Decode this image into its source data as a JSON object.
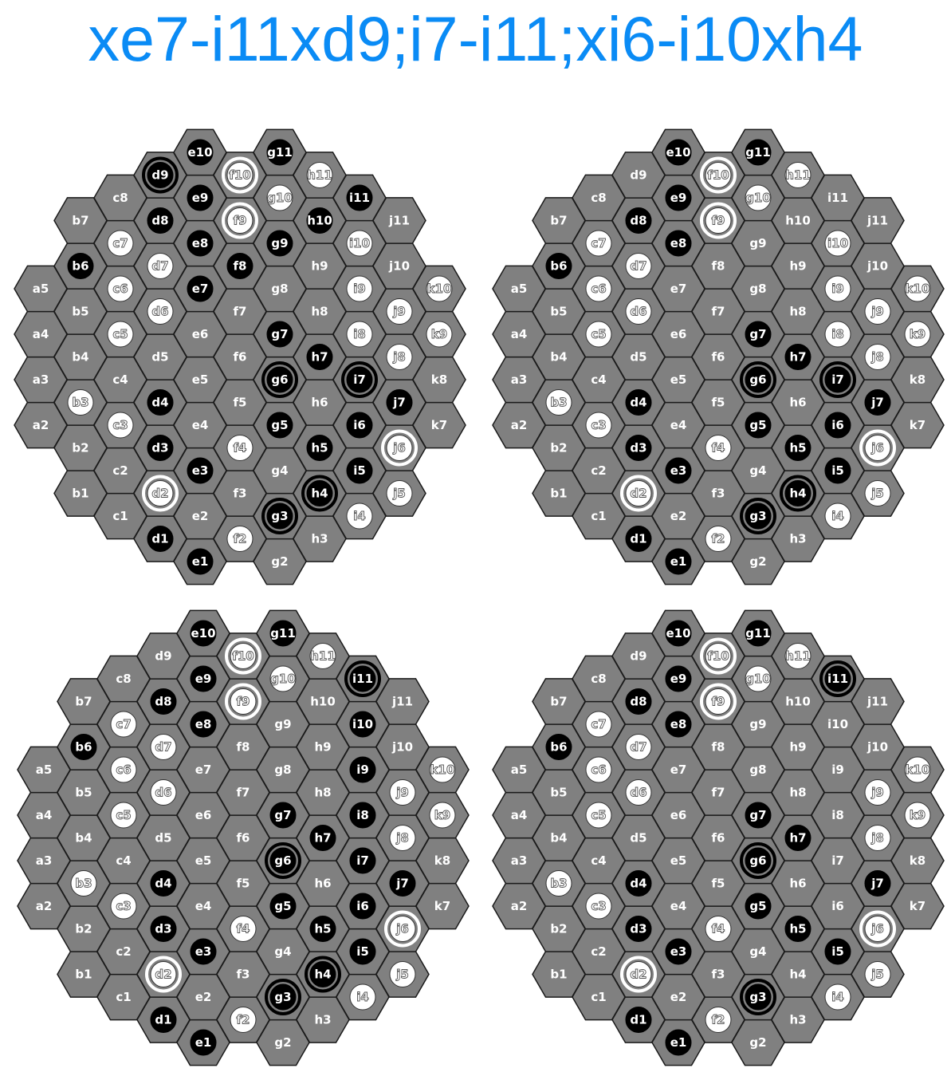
{
  "title": "xe7-i11xd9;i7-i11;xi6-i10xh4",
  "colors": {
    "title": "#0A8BF5",
    "cell_fill": "#808080",
    "cell_stroke": "#1a1a1a",
    "black_stone": "#000000",
    "white_stone": "#ffffff",
    "empty_label": "#ffffff"
  },
  "board_columns": [
    {
      "file": "a",
      "ranks": [
        "2",
        "3",
        "4",
        "5"
      ]
    },
    {
      "file": "b",
      "ranks": [
        "1",
        "2",
        "3",
        "4",
        "5",
        "6",
        "7"
      ]
    },
    {
      "file": "c",
      "ranks": [
        "1",
        "2",
        "3",
        "4",
        "5",
        "6",
        "7",
        "8"
      ]
    },
    {
      "file": "d",
      "ranks": [
        "1",
        "2",
        "3",
        "4",
        "5",
        "6",
        "7",
        "8",
        "9"
      ]
    },
    {
      "file": "e",
      "ranks": [
        "1",
        "2",
        "3",
        "4",
        "5",
        "6",
        "7",
        "8",
        "9",
        "10"
      ]
    },
    {
      "file": "f",
      "ranks": [
        "2",
        "3",
        "4",
        "5",
        "6",
        "7",
        "8",
        "9",
        "10"
      ]
    },
    {
      "file": "g",
      "ranks": [
        "2",
        "3",
        "4",
        "5",
        "6",
        "7",
        "8",
        "9",
        "10",
        "11"
      ]
    },
    {
      "file": "h",
      "ranks": [
        "3",
        "4",
        "5",
        "6",
        "7",
        "8",
        "9",
        "10",
        "11"
      ]
    },
    {
      "file": "i",
      "ranks": [
        "4",
        "5",
        "6",
        "7",
        "8",
        "9",
        "10",
        "11"
      ]
    },
    {
      "file": "j",
      "ranks": [
        "5",
        "6",
        "7",
        "8",
        "9",
        "10",
        "11"
      ]
    },
    {
      "file": "k",
      "ranks": [
        "7",
        "8",
        "9",
        "10"
      ]
    }
  ],
  "boards": [
    {
      "name": "position-1",
      "black": [
        "b6",
        "d1",
        "d3",
        "d4",
        "d8",
        "d9",
        "e1",
        "e3",
        "e7",
        "e8",
        "e9",
        "e10",
        "f8",
        "g3",
        "g5",
        "g6",
        "g7",
        "g9",
        "g11",
        "h4",
        "h5",
        "h7",
        "h10",
        "i5",
        "i6",
        "i7",
        "i11",
        "j7"
      ],
      "white": [
        "b3",
        "c3",
        "c5",
        "c6",
        "c7",
        "d2",
        "d6",
        "d7",
        "f2",
        "f4",
        "f9",
        "f10",
        "g10",
        "h11",
        "i4",
        "i8",
        "i9",
        "i10",
        "j5",
        "j6",
        "j8",
        "j9",
        "k9",
        "k10"
      ],
      "rings": [
        "d9",
        "f9",
        "f10",
        "g3",
        "g6",
        "h4",
        "i7",
        "d2",
        "j6"
      ]
    },
    {
      "name": "position-2",
      "black": [
        "b6",
        "d1",
        "d3",
        "d4",
        "d8",
        "e1",
        "e3",
        "e8",
        "e9",
        "e10",
        "g3",
        "g5",
        "g6",
        "g7",
        "g11",
        "h4",
        "h5",
        "h7",
        "i5",
        "i6",
        "i7",
        "j7"
      ],
      "white": [
        "b3",
        "c3",
        "c5",
        "c6",
        "c7",
        "d2",
        "d6",
        "d7",
        "f2",
        "f4",
        "f9",
        "f10",
        "g10",
        "h11",
        "i4",
        "i8",
        "i9",
        "i10",
        "j5",
        "j6",
        "j8",
        "j9",
        "k9",
        "k10"
      ],
      "rings": [
        "f9",
        "f10",
        "g3",
        "g6",
        "h4",
        "i7",
        "d2",
        "j6"
      ]
    },
    {
      "name": "position-3",
      "black": [
        "b6",
        "d1",
        "d3",
        "d4",
        "d8",
        "e1",
        "e3",
        "e8",
        "e9",
        "e10",
        "g3",
        "g5",
        "g6",
        "g7",
        "g11",
        "h4",
        "h5",
        "h7",
        "i5",
        "i6",
        "i7",
        "i8",
        "i9",
        "i10",
        "i11",
        "j7"
      ],
      "white": [
        "b3",
        "c3",
        "c5",
        "c6",
        "c7",
        "d2",
        "d6",
        "d7",
        "f2",
        "f4",
        "f9",
        "f10",
        "g10",
        "h11",
        "i4",
        "j5",
        "j6",
        "j8",
        "j9",
        "k9",
        "k10"
      ],
      "rings": [
        "f9",
        "f10",
        "g3",
        "g6",
        "h4",
        "i11",
        "d2",
        "j6"
      ]
    },
    {
      "name": "position-4",
      "black": [
        "b6",
        "d1",
        "d3",
        "d4",
        "d8",
        "e1",
        "e3",
        "e8",
        "e9",
        "e10",
        "g3",
        "g5",
        "g6",
        "g7",
        "g11",
        "h5",
        "h7",
        "i5",
        "i11",
        "j7"
      ],
      "white": [
        "b3",
        "c3",
        "c5",
        "c6",
        "c7",
        "d2",
        "d6",
        "d7",
        "f2",
        "f4",
        "f9",
        "f10",
        "g10",
        "h11",
        "i4",
        "j5",
        "j6",
        "j8",
        "j9",
        "k9",
        "k10"
      ],
      "rings": [
        "f9",
        "f10",
        "g3",
        "g6",
        "i11",
        "d2",
        "j6"
      ]
    }
  ]
}
